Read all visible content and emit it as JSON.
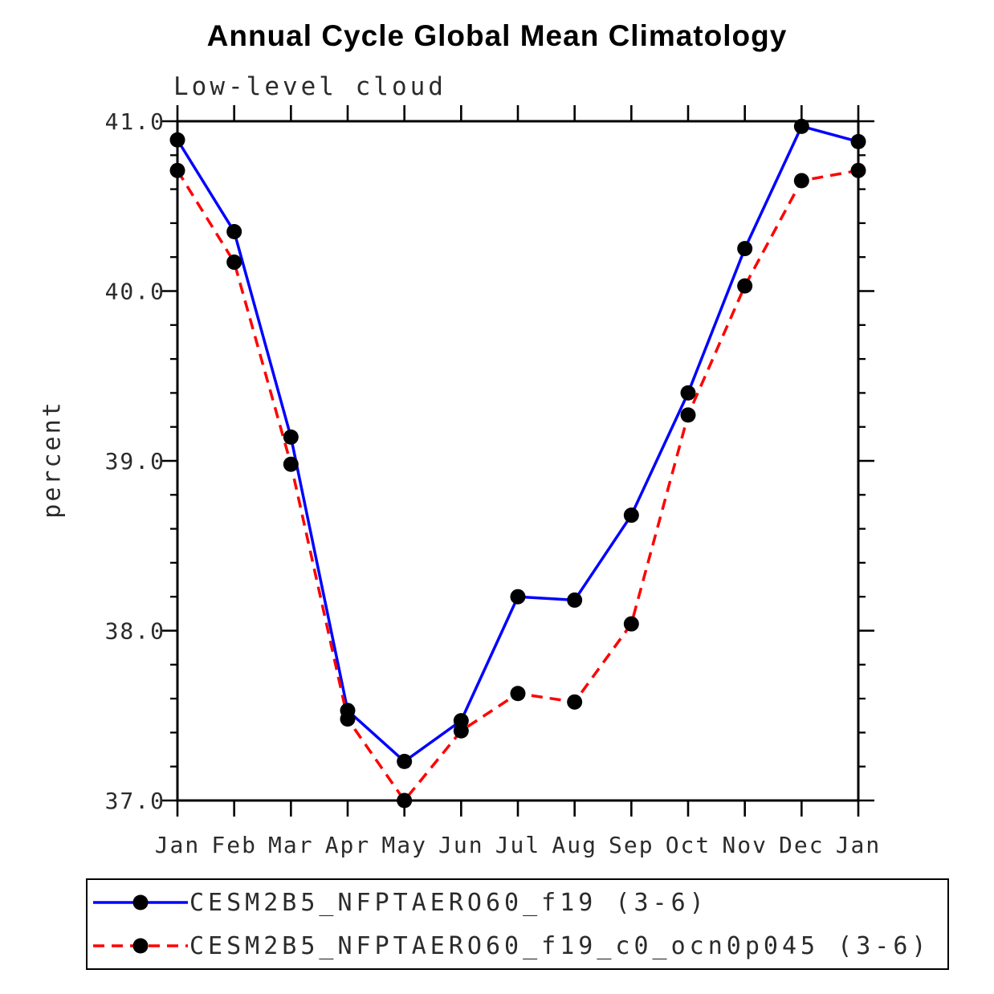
{
  "chart_data": {
    "type": "line",
    "title": "Annual Cycle Global Mean Climatology",
    "subtitle": "Low-level cloud",
    "xlabel": "",
    "ylabel": "percent",
    "categories": [
      "Jan",
      "Feb",
      "Mar",
      "Apr",
      "May",
      "Jun",
      "Jul",
      "Aug",
      "Sep",
      "Oct",
      "Nov",
      "Dec",
      "Jan"
    ],
    "ylim": [
      37.0,
      41.0
    ],
    "ytick_labels": [
      "37.0",
      "38.0",
      "39.0",
      "40.0",
      "41.0"
    ],
    "ytick_major": [
      37.0,
      38.0,
      39.0,
      40.0,
      41.0
    ],
    "ytick_minor_step": 0.2,
    "grid": false,
    "legend_position": "bottom",
    "axis_color": "#000000",
    "marker_color": "#000000",
    "series": [
      {
        "name": "CESM2B5_NFPTAERO60_f19 (3-6)",
        "color": "#0000ff",
        "style": "solid",
        "marker": "circle",
        "values": [
          40.89,
          40.35,
          39.14,
          37.53,
          37.23,
          37.47,
          38.2,
          38.18,
          38.68,
          39.4,
          40.25,
          40.97,
          40.88
        ]
      },
      {
        "name": "CESM2B5_NFPTAERO60_f19_c0_ocn0p045 (3-6)",
        "color": "#ff0000",
        "style": "dashed",
        "marker": "circle",
        "values": [
          40.71,
          40.17,
          38.98,
          37.48,
          37.0,
          37.41,
          37.63,
          37.58,
          38.04,
          39.27,
          40.03,
          40.65,
          40.71
        ]
      }
    ]
  }
}
